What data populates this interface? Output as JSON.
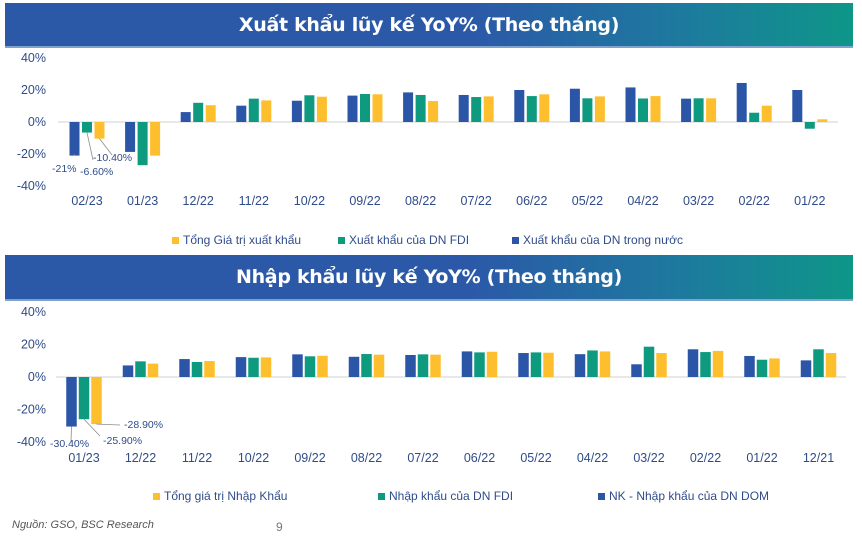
{
  "colors": {
    "domestic": "#2B55A6",
    "fdi": "#0E9A7E",
    "total": "#FDBF2D",
    "axis_text": "#2F4C8A",
    "zero_line": "#D9D9D9",
    "label_leader": "#8C8C8C"
  },
  "export_section": {
    "title": "Xuất khẩu lũy kế YoY% (Theo tháng)",
    "legend": [
      {
        "key": "total",
        "label": "Tổng Giá trị xuất khẩu"
      },
      {
        "key": "fdi",
        "label": "Xuất khẩu của DN FDI"
      },
      {
        "key": "domestic",
        "label": "Xuất khẩu của DN trong nước"
      }
    ]
  },
  "import_section": {
    "title": "Nhập khẩu lũy kế YoY% (Theo tháng)",
    "legend": [
      {
        "key": "total",
        "label": "Tổng giá trị Nhập Khẩu"
      },
      {
        "key": "fdi",
        "label": "Nhập khẩu của DN FDI"
      },
      {
        "key": "domestic",
        "label": "NK - Nhập khẩu của DN DOM"
      }
    ]
  },
  "footer": {
    "source": "Nguồn: GSO, BSC Research",
    "page_number": "9"
  },
  "chart_data": [
    {
      "type": "bar",
      "title": "Xuất khẩu lũy kế YoY% (Theo tháng)",
      "xlabel": "",
      "ylabel": "",
      "ylim": [
        -40,
        40
      ],
      "yticks": [
        "40%",
        "20%",
        "0%",
        "-20%",
        "-40%"
      ],
      "grid": false,
      "legend_position": "bottom",
      "categories": [
        "02/23",
        "01/23",
        "12/22",
        "11/22",
        "10/22",
        "09/22",
        "08/22",
        "07/22",
        "06/22",
        "05/22",
        "04/22",
        "03/22",
        "02/22",
        "01/22"
      ],
      "series": [
        {
          "name": "Xuất khẩu của DN trong nước",
          "key": "domestic",
          "values": [
            -21,
            -18.7,
            6.2,
            10.2,
            13.3,
            16.5,
            18.5,
            16.9,
            20.0,
            20.8,
            21.6,
            14.6,
            24.4,
            20.0
          ]
        },
        {
          "name": "Xuất khẩu của DN FDI",
          "key": "fdi",
          "values": [
            -6.6,
            -27.0,
            12.0,
            14.6,
            16.7,
            17.5,
            16.9,
            15.6,
            16.2,
            14.8,
            14.7,
            14.8,
            5.8,
            -4.2
          ]
        },
        {
          "name": "Tổng Giá trị xuất khẩu",
          "key": "total",
          "values": [
            -10.4,
            -21.0,
            10.5,
            13.5,
            15.8,
            17.3,
            13.1,
            16.0,
            17.3,
            16.0,
            16.2,
            14.8,
            10.2,
            1.7
          ]
        }
      ],
      "annotations": [
        {
          "text": "-21%",
          "category": "02/23",
          "series": "domestic"
        },
        {
          "text": "-6.60%",
          "category": "02/23",
          "series": "fdi"
        },
        {
          "text": "-10.40%",
          "category": "02/23",
          "series": "total"
        }
      ]
    },
    {
      "type": "bar",
      "title": "Nhập khẩu lũy kế YoY% (Theo tháng)",
      "xlabel": "",
      "ylabel": "",
      "ylim": [
        -40,
        40
      ],
      "yticks": [
        "40%",
        "20%",
        "0%",
        "-20%",
        "-40%"
      ],
      "grid": false,
      "legend_position": "bottom",
      "categories": [
        "01/23",
        "12/22",
        "11/22",
        "10/22",
        "09/22",
        "08/22",
        "07/22",
        "06/22",
        "05/22",
        "04/22",
        "03/22",
        "02/22",
        "01/22",
        "12/21"
      ],
      "series": [
        {
          "name": "NK - Nhập khẩu của DN DOM",
          "key": "domestic",
          "values": [
            -30.4,
            7.1,
            11.0,
            12.2,
            13.9,
            12.4,
            13.5,
            15.7,
            14.7,
            14.0,
            7.8,
            17.0,
            12.9,
            10.2
          ]
        },
        {
          "name": "Nhập khẩu của DN FDI",
          "key": "fdi",
          "values": [
            -25.9,
            9.6,
            9.2,
            11.8,
            12.7,
            14.1,
            13.9,
            15.1,
            15.1,
            16.3,
            18.6,
            15.3,
            10.6,
            17.0
          ]
        },
        {
          "name": "Tổng giá trị Nhập Khẩu",
          "key": "total",
          "values": [
            -28.9,
            8.2,
            9.8,
            12.0,
            13.0,
            13.7,
            13.7,
            15.5,
            14.9,
            15.7,
            14.7,
            16.0,
            11.4,
            14.7
          ]
        }
      ],
      "annotations": [
        {
          "text": "-30.40%",
          "category": "01/23",
          "series": "domestic"
        },
        {
          "text": "-25.90%",
          "category": "01/23",
          "series": "fdi"
        },
        {
          "text": "-28.90%",
          "category": "01/23",
          "series": "total"
        }
      ]
    }
  ]
}
